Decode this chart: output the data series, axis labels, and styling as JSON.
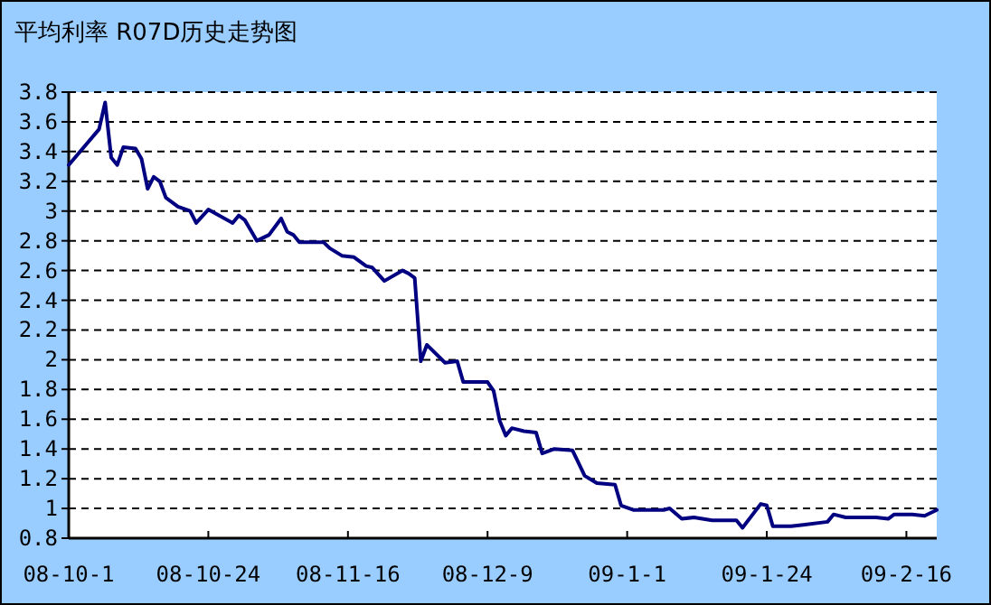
{
  "chart_data": {
    "type": "line",
    "title": "平均利率 R07D历史走势图",
    "categories": [
      "08-10-1",
      null,
      null,
      null,
      null,
      null,
      null,
      null,
      null,
      null,
      null,
      null,
      null,
      null,
      null,
      null,
      null,
      null,
      null,
      null,
      null,
      null,
      null,
      "08-10-24",
      null,
      null,
      null,
      null,
      null,
      null,
      null,
      null,
      null,
      null,
      null,
      null,
      null,
      null,
      null,
      null,
      null,
      null,
      null,
      null,
      null,
      null,
      "08-11-16",
      null,
      null,
      null,
      null,
      null,
      null,
      null,
      null,
      null,
      null,
      null,
      null,
      null,
      null,
      null,
      null,
      null,
      null,
      null,
      null,
      null,
      null,
      "08-12-9",
      null,
      null,
      null,
      null,
      null,
      null,
      null,
      null,
      null,
      null,
      null,
      null,
      null,
      null,
      null,
      null,
      null,
      null,
      null,
      null,
      null,
      null,
      "09-1-1",
      null,
      null,
      null,
      null,
      null,
      null,
      null,
      null,
      null,
      null,
      null,
      null,
      null,
      null,
      null,
      null,
      null,
      null,
      null,
      null,
      null,
      null,
      "09-1-24",
      null,
      null,
      null,
      null,
      null,
      null,
      null,
      null,
      null,
      null,
      null,
      null,
      null,
      null,
      null,
      null,
      null,
      null,
      null,
      null,
      null,
      null,
      "09-2-16",
      null,
      null,
      null,
      null,
      null
    ],
    "series": [
      {
        "color": "#000080",
        "values": [
          3.31,
          null,
          null,
          null,
          null,
          3.55,
          3.73,
          3.36,
          3.31,
          3.43,
          null,
          3.42,
          3.35,
          3.15,
          3.23,
          3.2,
          3.09,
          null,
          3.03,
          null,
          3.0,
          2.92,
          null,
          3.01,
          null,
          null,
          null,
          2.92,
          2.97,
          2.94,
          null,
          2.8,
          null,
          2.84,
          null,
          2.95,
          2.86,
          2.84,
          2.79,
          null,
          null,
          null,
          2.79,
          2.75,
          null,
          2.7,
          null,
          2.69,
          null,
          2.63,
          2.62,
          null,
          2.53,
          null,
          null,
          2.6,
          2.58,
          2.55,
          1.99,
          2.1,
          null,
          null,
          1.98,
          null,
          1.99,
          1.85,
          null,
          null,
          null,
          1.85,
          1.79,
          1.59,
          1.49,
          1.54,
          null,
          1.52,
          null,
          1.51,
          1.37,
          null,
          1.4,
          null,
          null,
          1.39,
          null,
          1.22,
          null,
          1.17,
          null,
          null,
          1.16,
          1.02,
          null,
          0.99,
          null,
          null,
          null,
          null,
          0.99,
          1.0,
          null,
          0.93,
          null,
          0.94,
          null,
          null,
          0.92,
          null,
          null,
          null,
          0.92,
          0.87,
          null,
          null,
          1.03,
          1.02,
          0.88,
          null,
          null,
          0.88,
          null,
          0.89,
          null,
          null,
          null,
          0.91,
          0.96,
          null,
          0.94,
          null,
          null,
          null,
          null,
          0.94,
          null,
          0.93,
          0.96,
          null,
          null,
          0.96,
          null,
          0.95,
          null,
          0.99
        ]
      }
    ],
    "ylim": [
      0.8,
      3.8
    ],
    "yticks": [
      0.8,
      1,
      1.2,
      1.4,
      1.6,
      1.8,
      2,
      2.2,
      2.4,
      2.6,
      2.8,
      3,
      3.2,
      3.4,
      3.6,
      3.8
    ],
    "grid": "y",
    "line_style": "solid"
  }
}
